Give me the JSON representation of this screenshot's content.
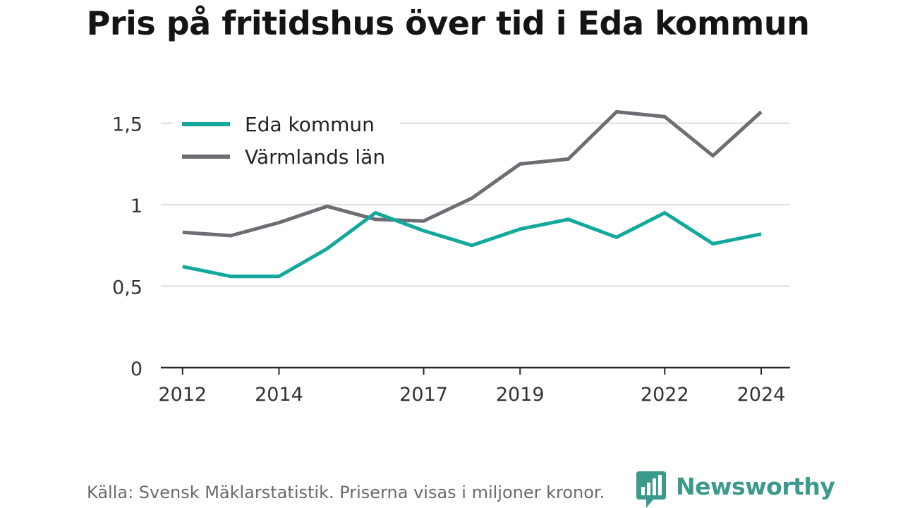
{
  "header": {
    "title": "Pris på fritidshus över tid i Eda kommun"
  },
  "footer": {
    "source": "Källa: Svensk Mäklarstatistik. Priserna visas i miljoner kronor."
  },
  "brand": {
    "name": "Newsworthy",
    "icon": "newsworthy-logo-icon",
    "color": "#3c9a8c"
  },
  "chart_data": {
    "type": "line",
    "title": "Pris på fritidshus över tid i Eda kommun",
    "xlabel": "",
    "ylabel": "",
    "x": [
      2012,
      2013,
      2014,
      2015,
      2016,
      2017,
      2018,
      2019,
      2020,
      2021,
      2022,
      2023,
      2024
    ],
    "x_tick_values": [
      2012,
      2014,
      2017,
      2019,
      2022,
      2024
    ],
    "x_tick_labels": [
      "2012",
      "2014",
      "2017",
      "2019",
      "2022",
      "2024"
    ],
    "xlim": [
      2011.55,
      2024.6
    ],
    "ylim": [
      0,
      1.65
    ],
    "y_tick_values": [
      0,
      0.5,
      1,
      1.5
    ],
    "y_tick_labels": [
      "0",
      "0,5",
      "1",
      "1,5"
    ],
    "grid": "horizontal",
    "legend_position": "top-left",
    "series": [
      {
        "name": "Eda kommun",
        "color": "#13a89c",
        "values": [
          0.62,
          0.56,
          0.56,
          0.73,
          0.95,
          0.84,
          0.75,
          0.85,
          0.91,
          0.8,
          0.95,
          0.76,
          0.82
        ]
      },
      {
        "name": "Värmlands län",
        "color": "#6d6d73",
        "values": [
          0.83,
          0.81,
          0.89,
          0.99,
          0.91,
          0.9,
          1.04,
          1.25,
          1.28,
          1.57,
          1.54,
          1.3,
          1.57
        ]
      }
    ]
  }
}
